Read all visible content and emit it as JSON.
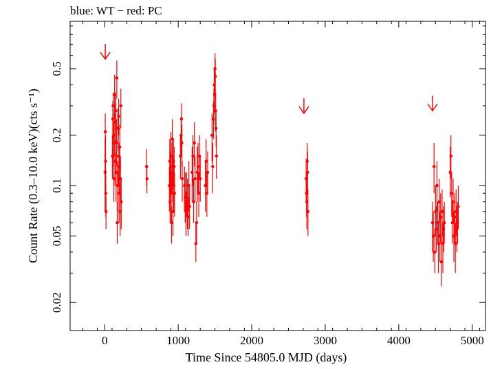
{
  "header": {
    "legend_text": "blue: WT − red: PC"
  },
  "chart_data": {
    "type": "scatter",
    "title": "",
    "xlabel": "Time Since 54805.0 MJD (days)",
    "ylabel": "Count Rate (0.3–10.0 keV)(cts s⁻¹)",
    "ylog": true,
    "xlim": [
      -470,
      5180
    ],
    "ylim": [
      0.0136,
      0.96
    ],
    "x_ticks": [
      {
        "value": 0,
        "label": "0"
      },
      {
        "value": 1000,
        "label": "1000"
      },
      {
        "value": 2000,
        "label": "2000"
      },
      {
        "value": 3000,
        "label": "3000"
      },
      {
        "value": 4000,
        "label": "4000"
      },
      {
        "value": 5000,
        "label": "5000"
      }
    ],
    "y_ticks": [
      {
        "value": 0.02,
        "label": "0.02"
      },
      {
        "value": 0.05,
        "label": "0.05"
      },
      {
        "value": 0.1,
        "label": "0.1"
      },
      {
        "value": 0.2,
        "label": "0.2"
      },
      {
        "value": 0.5,
        "label": "0.5"
      }
    ],
    "legend": {
      "WT": "blue",
      "PC": "red"
    },
    "colors": {
      "PC": "#ff0000",
      "WT": "#0000ff",
      "axes": "#000000"
    },
    "upper_limits": [
      {
        "x": 8,
        "y": 0.57
      },
      {
        "x": 2710,
        "y": 0.27
      },
      {
        "x": 4460,
        "y": 0.28
      }
    ],
    "series": [
      {
        "name": "PC",
        "points": [
          [
            5,
            0.12,
            0.07,
            0.19
          ],
          [
            8,
            0.21,
            0.15,
            0.27
          ],
          [
            12,
            0.14,
            0.09,
            0.2
          ],
          [
            15,
            0.09,
            0.065,
            0.125
          ],
          [
            18,
            0.07,
            0.055,
            0.085
          ],
          [
            105,
            0.15,
            0.11,
            0.2
          ],
          [
            110,
            0.25,
            0.19,
            0.32
          ],
          [
            115,
            0.3,
            0.24,
            0.36
          ],
          [
            120,
            0.18,
            0.13,
            0.24
          ],
          [
            125,
            0.11,
            0.08,
            0.15
          ],
          [
            130,
            0.2,
            0.15,
            0.27
          ],
          [
            135,
            0.35,
            0.25,
            0.46
          ],
          [
            140,
            0.14,
            0.1,
            0.19
          ],
          [
            145,
            0.24,
            0.18,
            0.31
          ],
          [
            150,
            0.28,
            0.21,
            0.36
          ],
          [
            155,
            0.12,
            0.08,
            0.16
          ],
          [
            160,
            0.18,
            0.13,
            0.25
          ],
          [
            165,
            0.44,
            0.33,
            0.56
          ],
          [
            170,
            0.06,
            0.045,
            0.08
          ],
          [
            175,
            0.1,
            0.07,
            0.14
          ],
          [
            180,
            0.22,
            0.16,
            0.29
          ],
          [
            185,
            0.15,
            0.1,
            0.2
          ],
          [
            190,
            0.26,
            0.2,
            0.33
          ],
          [
            195,
            0.09,
            0.06,
            0.12
          ],
          [
            200,
            0.13,
            0.09,
            0.18
          ],
          [
            205,
            0.17,
            0.12,
            0.23
          ],
          [
            210,
            0.07,
            0.05,
            0.1
          ],
          [
            215,
            0.11,
            0.08,
            0.15
          ],
          [
            220,
            0.3,
            0.22,
            0.38
          ],
          [
            225,
            0.08,
            0.055,
            0.11
          ],
          [
            570,
            0.13,
            0.1,
            0.165
          ],
          [
            575,
            0.11,
            0.09,
            0.13
          ],
          [
            880,
            0.1,
            0.07,
            0.13
          ],
          [
            885,
            0.14,
            0.1,
            0.19
          ],
          [
            890,
            0.08,
            0.06,
            0.11
          ],
          [
            895,
            0.12,
            0.09,
            0.16
          ],
          [
            900,
            0.15,
            0.1,
            0.21
          ],
          [
            905,
            0.09,
            0.06,
            0.12
          ],
          [
            910,
            0.06,
            0.045,
            0.075
          ],
          [
            915,
            0.13,
            0.09,
            0.18
          ],
          [
            920,
            0.19,
            0.14,
            0.25
          ],
          [
            925,
            0.11,
            0.08,
            0.15
          ],
          [
            930,
            0.07,
            0.05,
            0.09
          ],
          [
            935,
            0.14,
            0.1,
            0.19
          ],
          [
            940,
            0.1,
            0.07,
            0.14
          ],
          [
            945,
            0.13,
            0.1,
            0.17
          ],
          [
            950,
            0.09,
            0.065,
            0.12
          ],
          [
            1030,
            0.15,
            0.11,
            0.2
          ],
          [
            1040,
            0.2,
            0.15,
            0.26
          ],
          [
            1045,
            0.25,
            0.19,
            0.31
          ],
          [
            1050,
            0.18,
            0.13,
            0.23
          ],
          [
            1055,
            0.11,
            0.08,
            0.14
          ],
          [
            1085,
            0.1,
            0.07,
            0.13
          ],
          [
            1095,
            0.085,
            0.06,
            0.12
          ],
          [
            1105,
            0.07,
            0.05,
            0.09
          ],
          [
            1115,
            0.09,
            0.065,
            0.12
          ],
          [
            1125,
            0.08,
            0.055,
            0.11
          ],
          [
            1135,
            0.065,
            0.05,
            0.085
          ],
          [
            1145,
            0.1,
            0.07,
            0.14
          ],
          [
            1155,
            0.075,
            0.055,
            0.1
          ],
          [
            1190,
            0.12,
            0.08,
            0.17
          ],
          [
            1200,
            0.15,
            0.1,
            0.2
          ],
          [
            1210,
            0.08,
            0.06,
            0.11
          ],
          [
            1220,
            0.18,
            0.13,
            0.24
          ],
          [
            1230,
            0.11,
            0.08,
            0.15
          ],
          [
            1240,
            0.045,
            0.035,
            0.06
          ],
          [
            1250,
            0.06,
            0.045,
            0.08
          ],
          [
            1260,
            0.12,
            0.08,
            0.17
          ],
          [
            1270,
            0.13,
            0.09,
            0.18
          ],
          [
            1280,
            0.09,
            0.065,
            0.12
          ],
          [
            1290,
            0.15,
            0.11,
            0.2
          ],
          [
            1300,
            0.11,
            0.08,
            0.15
          ],
          [
            1370,
            0.1,
            0.07,
            0.14
          ],
          [
            1380,
            0.14,
            0.1,
            0.19
          ],
          [
            1390,
            0.09,
            0.065,
            0.12
          ],
          [
            1400,
            0.12,
            0.09,
            0.16
          ],
          [
            1460,
            0.2,
            0.14,
            0.27
          ],
          [
            1470,
            0.13,
            0.09,
            0.18
          ],
          [
            1480,
            0.25,
            0.19,
            0.32
          ],
          [
            1485,
            0.3,
            0.23,
            0.38
          ],
          [
            1490,
            0.4,
            0.3,
            0.5
          ],
          [
            1495,
            0.35,
            0.27,
            0.44
          ],
          [
            1500,
            0.5,
            0.38,
            0.62
          ],
          [
            1505,
            0.45,
            0.34,
            0.57
          ],
          [
            1510,
            0.28,
            0.21,
            0.36
          ],
          [
            1515,
            0.22,
            0.17,
            0.28
          ],
          [
            1520,
            0.15,
            0.11,
            0.2
          ],
          [
            2740,
            0.11,
            0.08,
            0.145
          ],
          [
            2745,
            0.09,
            0.065,
            0.12
          ],
          [
            2750,
            0.08,
            0.055,
            0.105
          ],
          [
            2755,
            0.14,
            0.1,
            0.18
          ],
          [
            2760,
            0.12,
            0.09,
            0.16
          ],
          [
            2765,
            0.07,
            0.05,
            0.095
          ],
          [
            4460,
            0.06,
            0.04,
            0.08
          ],
          [
            4470,
            0.05,
            0.035,
            0.07
          ],
          [
            4480,
            0.13,
            0.09,
            0.18
          ],
          [
            4490,
            0.04,
            0.03,
            0.055
          ],
          [
            4500,
            0.07,
            0.05,
            0.1
          ],
          [
            4510,
            0.055,
            0.04,
            0.075
          ],
          [
            4520,
            0.1,
            0.07,
            0.14
          ],
          [
            4530,
            0.06,
            0.045,
            0.08
          ],
          [
            4540,
            0.045,
            0.03,
            0.06
          ],
          [
            4550,
            0.08,
            0.06,
            0.11
          ],
          [
            4560,
            0.05,
            0.035,
            0.07
          ],
          [
            4570,
            0.065,
            0.045,
            0.09
          ],
          [
            4580,
            0.035,
            0.025,
            0.05
          ],
          [
            4590,
            0.07,
            0.05,
            0.095
          ],
          [
            4600,
            0.045,
            0.03,
            0.06
          ],
          [
            4610,
            0.055,
            0.04,
            0.075
          ],
          [
            4620,
            0.06,
            0.045,
            0.08
          ],
          [
            4700,
            0.12,
            0.085,
            0.17
          ],
          [
            4710,
            0.15,
            0.11,
            0.2
          ],
          [
            4720,
            0.09,
            0.065,
            0.12
          ],
          [
            4730,
            0.06,
            0.045,
            0.08
          ],
          [
            4740,
            0.08,
            0.06,
            0.11
          ],
          [
            4750,
            0.05,
            0.035,
            0.07
          ],
          [
            4760,
            0.065,
            0.045,
            0.09
          ],
          [
            4770,
            0.045,
            0.03,
            0.06
          ],
          [
            4780,
            0.07,
            0.05,
            0.095
          ],
          [
            4790,
            0.055,
            0.04,
            0.075
          ],
          [
            4800,
            0.06,
            0.045,
            0.08
          ],
          [
            4810,
            0.075,
            0.055,
            0.1
          ]
        ]
      }
    ]
  }
}
